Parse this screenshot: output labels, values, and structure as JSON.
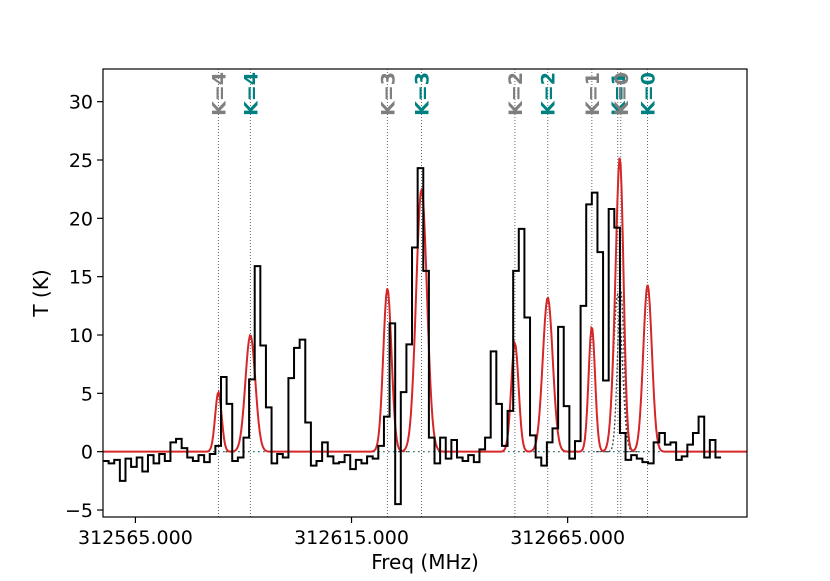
{
  "chart_data": {
    "type": "line",
    "xlabel": "Freq (MHz)",
    "ylabel": "T (K)",
    "xlim": [
      312557.5,
      312706.5
    ],
    "ylim": [
      -5.6,
      32.8
    ],
    "x_ticks": [
      312565.0,
      312615.0,
      312665.0
    ],
    "x_tick_labels": [
      "312565.000",
      "312615.000",
      "312665.000"
    ],
    "y_ticks": [
      -5,
      0,
      5,
      10,
      15,
      20,
      25,
      30
    ],
    "y_tick_labels": [
      "−5",
      "0",
      "5",
      "10",
      "15",
      "20",
      "25",
      "30"
    ],
    "colors": {
      "observed": "#000000",
      "fit": "#d62728",
      "component_line": "#444444",
      "k_label_gray": "#7f7f7f",
      "k_label_teal": "#008080"
    },
    "line_markers": [
      {
        "label": "K=4",
        "freq": 312584.2,
        "color": "gray"
      },
      {
        "label": "K=4",
        "freq": 312591.6,
        "color": "teal"
      },
      {
        "label": "K=3",
        "freq": 312623.3,
        "color": "gray"
      },
      {
        "label": "K=3",
        "freq": 312631.2,
        "color": "teal"
      },
      {
        "label": "K=2",
        "freq": 312652.8,
        "color": "gray"
      },
      {
        "label": "K=2",
        "freq": 312660.4,
        "color": "teal"
      },
      {
        "label": "K=1",
        "freq": 312670.6,
        "color": "gray"
      },
      {
        "label": "K=1",
        "freq": 312676.6,
        "color": "teal"
      },
      {
        "label": "K=0",
        "freq": 312677.3,
        "color": "gray"
      },
      {
        "label": "K=0",
        "freq": 312683.5,
        "color": "teal"
      }
    ],
    "fit_components": [
      {
        "center": 312584.2,
        "amp": 5.1,
        "sigma": 0.75
      },
      {
        "center": 312591.6,
        "amp": 10.0,
        "sigma": 1.15
      },
      {
        "center": 312623.3,
        "amp": 14.0,
        "sigma": 0.95
      },
      {
        "center": 312631.2,
        "amp": 22.5,
        "sigma": 1.25
      },
      {
        "center": 312652.8,
        "amp": 9.3,
        "sigma": 0.85
      },
      {
        "center": 312660.4,
        "amp": 13.2,
        "sigma": 1.15
      },
      {
        "center": 312670.6,
        "amp": 10.7,
        "sigma": 0.75
      },
      {
        "center": 312676.6,
        "amp": 13.5,
        "sigma": 1.0
      },
      {
        "center": 312677.3,
        "amp": 13.8,
        "sigma": 0.75
      },
      {
        "center": 312683.5,
        "amp": 14.3,
        "sigma": 1.0
      }
    ],
    "spectrum": {
      "x_start": 312557.5,
      "x_step": 1.3,
      "y": [
        -0.8,
        -1.0,
        -0.7,
        -2.5,
        -0.6,
        -1.3,
        -0.5,
        -1.7,
        -0.3,
        -1.0,
        -0.2,
        -0.8,
        0.8,
        1.1,
        0.3,
        -0.5,
        -0.8,
        -0.3,
        -0.9,
        -0.2,
        0.5,
        6.4,
        4.1,
        -0.8,
        -0.5,
        1.2,
        6.2,
        15.9,
        9.1,
        3.8,
        -1.0,
        -0.2,
        -0.5,
        6.3,
        8.9,
        9.6,
        2.5,
        -1.2,
        -0.8,
        0.8,
        -0.4,
        -1.0,
        -0.9,
        -0.3,
        -1.5,
        -0.7,
        -1.0,
        -0.4,
        -0.6,
        0.5,
        3.0,
        11.0,
        -4.5,
        5.1,
        9.2,
        17.5,
        24.3,
        15.5,
        1.2,
        -1.0,
        1.2,
        -0.6,
        1.0,
        -0.5,
        -0.8,
        -0.3,
        -0.9,
        0.2,
        1.2,
        8.6,
        4.1,
        0.5,
        3.5,
        15.5,
        19.1,
        11.5,
        1.4,
        -0.5,
        -1.2,
        0.8,
        2.0,
        10.7,
        3.9,
        -0.6,
        0.9,
        12.5,
        21.2,
        22.2,
        17.1,
        6.1,
        20.8,
        19.2,
        1.6,
        -0.7,
        -0.3,
        -0.6,
        -0.9,
        -1.0,
        0.8,
        1.6,
        0.6,
        0.8,
        -0.7,
        -0.4,
        0.6,
        1.6,
        3.0,
        -0.5,
        1.0,
        -0.5
      ]
    }
  }
}
